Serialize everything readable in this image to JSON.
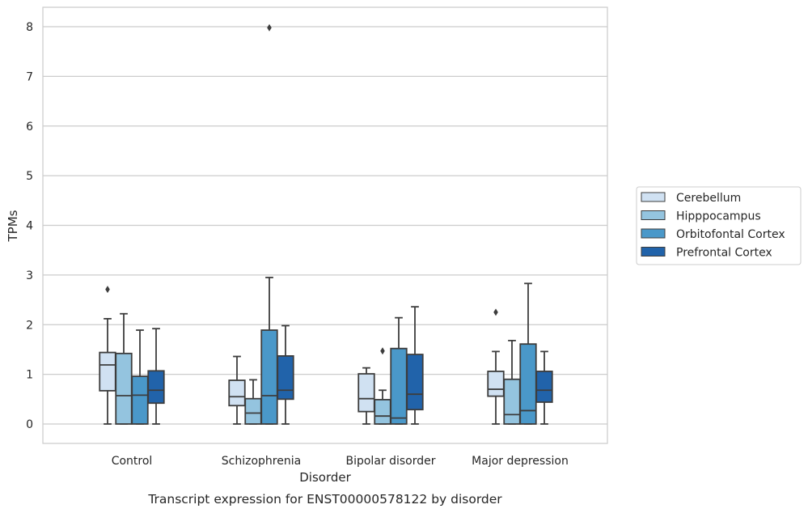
{
  "chart_data": {
    "type": "boxplot",
    "caption": "Transcript expression for ENST00000578122 by disorder",
    "xlabel": "Disorder",
    "ylabel": "TPMs",
    "ylim": [
      -0.4,
      8.4
    ],
    "yticks": [
      0,
      1,
      2,
      3,
      4,
      5,
      6,
      7,
      8
    ],
    "grid": "horizontal",
    "legend_position": "right",
    "categories": [
      "Control",
      "Schizophrenia",
      "Bipolar disorder",
      "Major depression"
    ],
    "series": [
      {
        "name": "Cerebellum",
        "color": "#d0e1f2",
        "boxes": [
          {
            "min": 0.0,
            "q1": 0.67,
            "median": 1.19,
            "q3": 1.44,
            "max": 2.12,
            "outliers": [
              2.71
            ]
          },
          {
            "min": 0.0,
            "q1": 0.37,
            "median": 0.55,
            "q3": 0.88,
            "max": 1.36,
            "outliers": []
          },
          {
            "min": 0.0,
            "q1": 0.25,
            "median": 0.51,
            "q3": 1.01,
            "max": 1.13,
            "outliers": []
          },
          {
            "min": 0.0,
            "q1": 0.56,
            "median": 0.7,
            "q3": 1.06,
            "max": 1.46,
            "outliers": [
              2.25
            ]
          }
        ]
      },
      {
        "name": "Hipppocampus",
        "color": "#94c4df",
        "boxes": [
          {
            "min": 0.0,
            "q1": 0.0,
            "median": 0.57,
            "q3": 1.42,
            "max": 2.22,
            "outliers": []
          },
          {
            "min": 0.0,
            "q1": 0.0,
            "median": 0.22,
            "q3": 0.51,
            "max": 0.89,
            "outliers": []
          },
          {
            "min": 0.0,
            "q1": 0.0,
            "median": 0.16,
            "q3": 0.49,
            "max": 0.68,
            "outliers": [
              1.47
            ]
          },
          {
            "min": 0.0,
            "q1": 0.0,
            "median": 0.19,
            "q3": 0.9,
            "max": 1.68,
            "outliers": []
          }
        ]
      },
      {
        "name": "Orbitofontal Cortex",
        "color": "#4a98c9",
        "boxes": [
          {
            "min": 0.0,
            "q1": 0.0,
            "median": 0.58,
            "q3": 0.96,
            "max": 1.89,
            "outliers": []
          },
          {
            "min": 0.0,
            "q1": 0.0,
            "median": 0.57,
            "q3": 1.89,
            "max": 2.95,
            "outliers": [
              7.98
            ]
          },
          {
            "min": 0.0,
            "q1": 0.0,
            "median": 0.12,
            "q3": 1.52,
            "max": 2.14,
            "outliers": []
          },
          {
            "min": 0.0,
            "q1": 0.0,
            "median": 0.27,
            "q3": 1.61,
            "max": 2.83,
            "outliers": []
          }
        ]
      },
      {
        "name": "Prefrontal Cortex",
        "color": "#2163aa",
        "boxes": [
          {
            "min": 0.0,
            "q1": 0.42,
            "median": 0.68,
            "q3": 1.07,
            "max": 1.92,
            "outliers": []
          },
          {
            "min": 0.0,
            "q1": 0.5,
            "median": 0.68,
            "q3": 1.37,
            "max": 1.98,
            "outliers": []
          },
          {
            "min": 0.0,
            "q1": 0.29,
            "median": 0.6,
            "q3": 1.4,
            "max": 2.36,
            "outliers": []
          },
          {
            "min": 0.0,
            "q1": 0.44,
            "median": 0.68,
            "q3": 1.06,
            "max": 1.46,
            "outliers": []
          }
        ]
      }
    ]
  }
}
